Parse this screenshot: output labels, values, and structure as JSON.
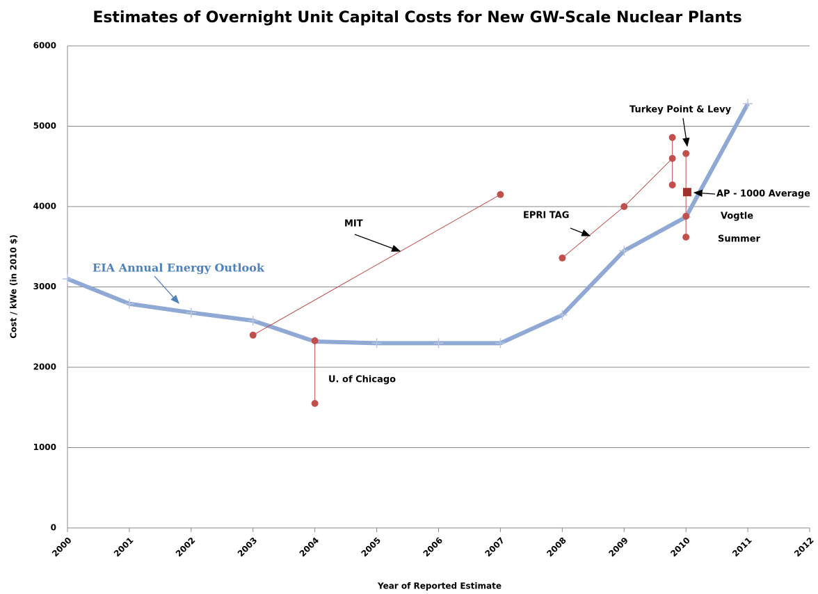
{
  "chart_data": {
    "type": "line",
    "title": "Estimates of Overnight Unit Capital Costs for New GW-Scale Nuclear Plants",
    "x_label": "Year of Reported Estimate",
    "y_label": "Cost / kWe (in 2010 $)",
    "xlim": [
      2000,
      2012
    ],
    "xticks": [
      2000,
      2001,
      2002,
      2003,
      2004,
      2005,
      2006,
      2007,
      2008,
      2009,
      2010,
      2011,
      2012
    ],
    "ylim": [
      0,
      6000
    ],
    "yticks": [
      0,
      1000,
      2000,
      3000,
      4000,
      5000,
      6000
    ],
    "grid": true,
    "series": [
      {
        "color": "#8fa8d4",
        "width": 6,
        "marker": "plus",
        "x": [
          2000,
          2001,
          2002,
          2003,
          2004,
          2005,
          2006,
          2007,
          2008,
          2009,
          2010,
          2011
        ],
        "values": [
          3100,
          2790,
          2680,
          2580,
          2320,
          2300,
          2300,
          2300,
          2650,
          3450,
          3870,
          5280
        ]
      },
      {
        "color": "#c0504d",
        "width": 1,
        "marker": "circle",
        "x": [
          2003,
          2007
        ],
        "values": [
          2400,
          4150
        ]
      },
      {
        "color": "#c0504d",
        "width": 1,
        "marker": "circle",
        "x": [
          2004,
          2004
        ],
        "values": [
          2330,
          1550
        ]
      },
      {
        "color": "#c0504d",
        "width": 1,
        "marker": "circle",
        "x": [
          2008,
          2009,
          2009.78
        ],
        "values": [
          3360,
          4000,
          4600
        ]
      },
      {
        "color": "#c0504d",
        "width": 1,
        "marker": "circle",
        "x": [
          2009.78,
          2009.78
        ],
        "values": [
          4860,
          4270
        ]
      },
      {
        "color": "#c0504d",
        "width": 1,
        "marker": "circle",
        "x": [
          2010,
          2010,
          2010
        ],
        "values": [
          4660,
          3880,
          3620
        ]
      },
      {
        "color": "#a32f2c",
        "width": 0,
        "marker": "square",
        "x": [
          2010.02
        ],
        "values": [
          4180
        ]
      }
    ],
    "annotations": [
      "EIA Annual Energy Outlook",
      "MIT",
      "U. of Chicago",
      "EPRI TAG",
      "Turkey Point & Levy",
      "AP - 1000 Average",
      "Vogtle",
      "Summer"
    ]
  }
}
